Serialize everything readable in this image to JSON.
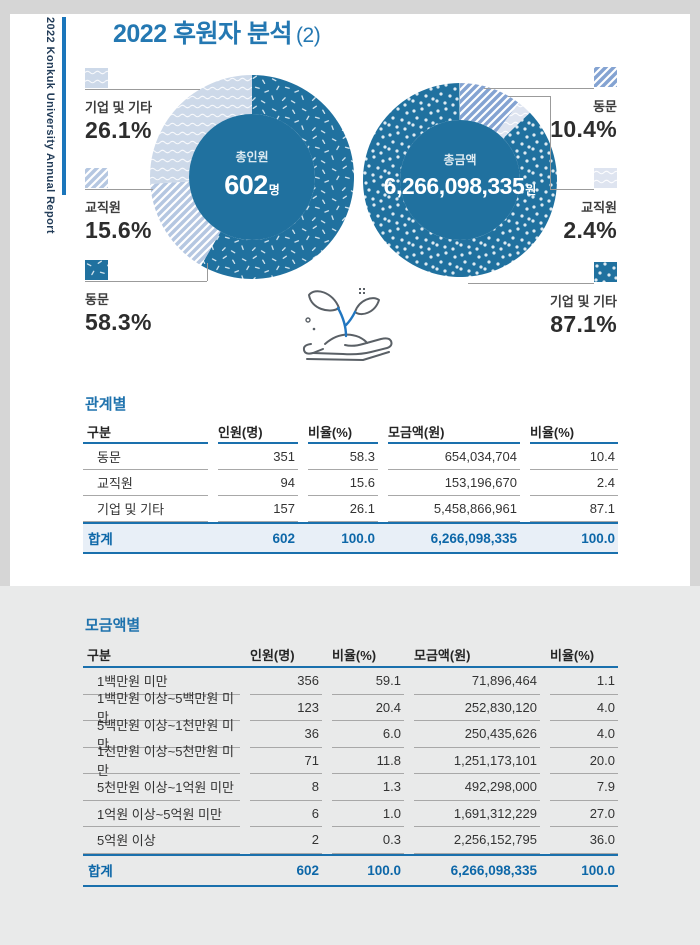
{
  "page": {
    "sidebar_text": "2022 Konkuk University Annual Report",
    "title": "2022 후원자 분석",
    "title_suffix": "(2)"
  },
  "colors": {
    "accent_blue": "#1b76bb",
    "title_blue": "#2478b2",
    "donut_dark": "#20719f",
    "stripe_light": "#b5c7e1",
    "stripe_medium": "#84a3d2",
    "wave_light": "#cdd9e9",
    "wave_pale": "#dee4f0",
    "table_line_blue": "#1a70ad",
    "total_row_bg": "#e8eff7",
    "total_text_blue": "#0d67a8"
  },
  "chart_data": [
    {
      "type": "pie",
      "title": "총인원",
      "center": {
        "label": "총인원",
        "value": "602",
        "unit": "명"
      },
      "series": [
        {
          "name": "동문",
          "value": 58.3,
          "pattern": "speckle"
        },
        {
          "name": "교직원",
          "value": 15.6,
          "pattern": "stripes_light"
        },
        {
          "name": "기업 및 기타",
          "value": 26.1,
          "pattern": "waves_light"
        }
      ]
    },
    {
      "type": "pie",
      "title": "총금액",
      "center": {
        "label": "총금액",
        "value": "6,266,098,335",
        "unit": "원"
      },
      "series": [
        {
          "name": "동문",
          "value": 10.4,
          "pattern": "stripes_medium"
        },
        {
          "name": "교직원",
          "value": 2.4,
          "pattern": "waves_pale"
        },
        {
          "name": "기업 및 기타",
          "value": 87.1,
          "pattern": "dots"
        }
      ]
    }
  ],
  "left_labels": [
    {
      "name": "기업 및 기타",
      "pct": "26.1%",
      "pattern": "waves_light"
    },
    {
      "name": "교직원",
      "pct": "15.6%",
      "pattern": "stripes_light"
    },
    {
      "name": "동문",
      "pct": "58.3%",
      "pattern": "speckle"
    }
  ],
  "right_labels": [
    {
      "name": "동문",
      "pct": "10.4%",
      "pattern": "stripes_medium"
    },
    {
      "name": "교직원",
      "pct": "2.4%",
      "pattern": "waves_pale"
    },
    {
      "name": "기업 및 기타",
      "pct": "87.1%",
      "pattern": "dots"
    }
  ],
  "table1": {
    "title": "관계별",
    "headers": [
      "구분",
      "인원(명)",
      "비율(%)",
      "모금액(원)",
      "비율(%)"
    ],
    "rows": [
      [
        "동문",
        "351",
        "58.3",
        "654,034,704",
        "10.4"
      ],
      [
        "교직원",
        "94",
        "15.6",
        "153,196,670",
        "2.4"
      ],
      [
        "기업 및 기타",
        "157",
        "26.1",
        "5,458,866,961",
        "87.1"
      ]
    ],
    "total": [
      "합계",
      "602",
      "100.0",
      "6,266,098,335",
      "100.0"
    ]
  },
  "table2": {
    "title": "모금액별",
    "headers": [
      "구분",
      "인원(명)",
      "비율(%)",
      "모금액(원)",
      "비율(%)"
    ],
    "rows": [
      [
        "1백만원 미만",
        "356",
        "59.1",
        "71,896,464",
        "1.1"
      ],
      [
        "1백만원 이상~5백만원 미만",
        "123",
        "20.4",
        "252,830,120",
        "4.0"
      ],
      [
        "5백만원 이상~1천만원 미만",
        "36",
        "6.0",
        "250,435,626",
        "4.0"
      ],
      [
        "1천만원 이상~5천만원 미만",
        "71",
        "11.8",
        "1,251,173,101",
        "20.0"
      ],
      [
        "5천만원 이상~1억원 미만",
        "8",
        "1.3",
        "492,298,000",
        "7.9"
      ],
      [
        "1억원 이상~5억원 미만",
        "6",
        "1.0",
        "1,691,312,229",
        "27.0"
      ],
      [
        "5억원 이상",
        "2",
        "0.3",
        "2,256,152,795",
        "36.0"
      ]
    ],
    "total": [
      "합계",
      "602",
      "100.0",
      "6,266,098,335",
      "100.0"
    ]
  }
}
